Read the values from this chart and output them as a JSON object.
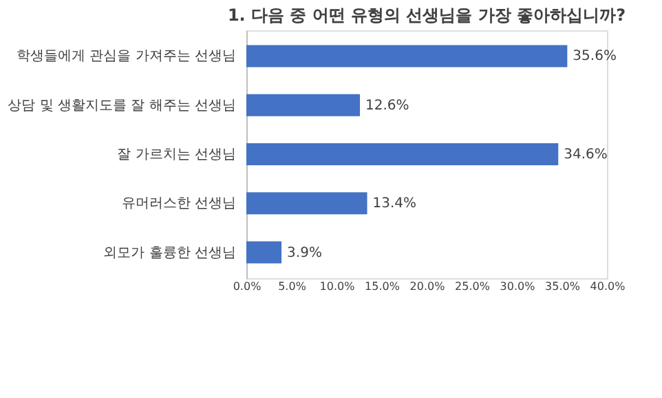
{
  "chart_data": {
    "type": "bar",
    "orientation": "horizontal",
    "title": "1. 다음 중 어떤 유형의 선생님을 가장 좋아하십니까?",
    "categories": [
      "학생들에게 관심을 가져주는 선생님",
      "상담 및 생활지도를 잘 해주는 선생님",
      "잘 가르치는 선생님",
      "유머러스한 선생님",
      "외모가 훌륭한 선생님"
    ],
    "values": [
      35.6,
      12.6,
      34.6,
      13.4,
      3.9
    ],
    "value_labels": [
      "35.6%",
      "12.6%",
      "34.6%",
      "13.4%",
      "3.9%"
    ],
    "color": "#4472c4",
    "xlim": [
      0,
      40
    ],
    "xticks": [
      {
        "value": 0,
        "label": "0.0%"
      },
      {
        "value": 5,
        "label": "5.0%"
      },
      {
        "value": 10,
        "label": "10.0%"
      },
      {
        "value": 15,
        "label": "15.0%"
      },
      {
        "value": 20,
        "label": "20.0%"
      },
      {
        "value": 25,
        "label": "25.0%"
      },
      {
        "value": 30,
        "label": "30.0%"
      },
      {
        "value": 35,
        "label": "35.0%"
      },
      {
        "value": 40,
        "label": "40.0%"
      }
    ],
    "grid": false
  }
}
